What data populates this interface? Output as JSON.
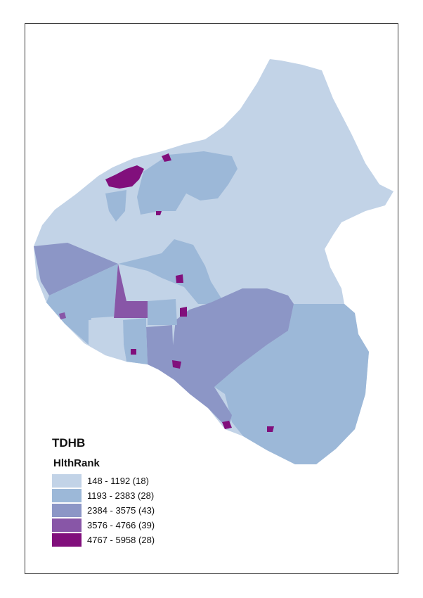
{
  "legend": {
    "title": "TDHB",
    "field": "HlthRank",
    "classes": [
      {
        "label": "148 - 1192 (18)",
        "color": "#c2d3e7"
      },
      {
        "label": "1193 - 2383 (28)",
        "color": "#9cb8d8"
      },
      {
        "label": "2384 - 3575 (43)",
        "color": "#8c96c6"
      },
      {
        "label": "3576 - 4766 (39)",
        "color": "#8856a7"
      },
      {
        "label": "4767 - 5958 (28)",
        "color": "#810f7c"
      }
    ]
  }
}
